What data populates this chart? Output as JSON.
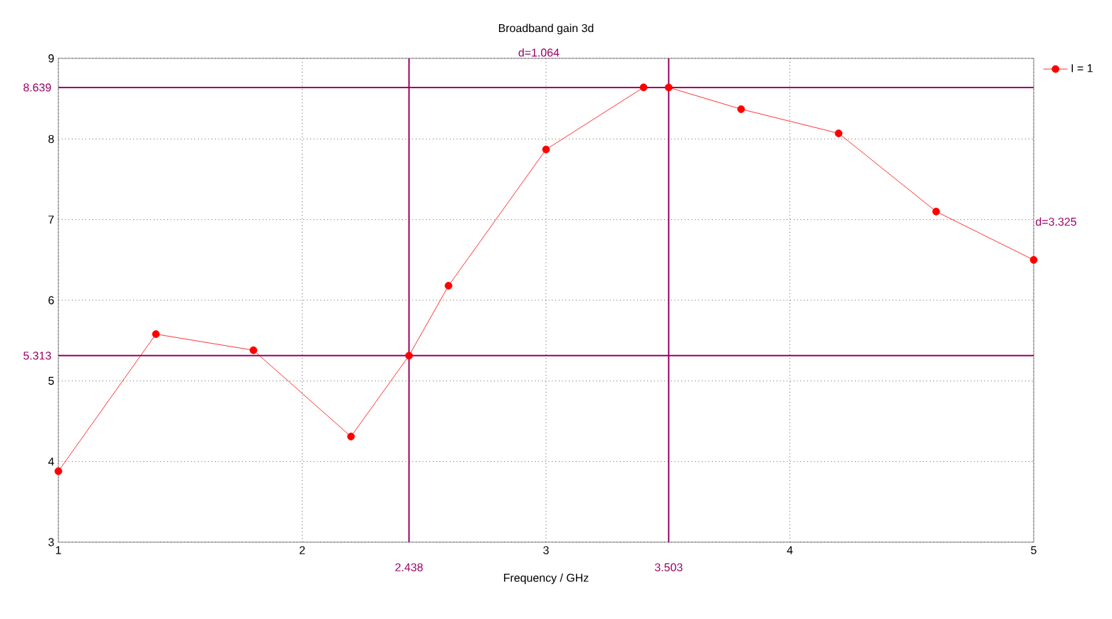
{
  "chart_data": {
    "type": "line",
    "title": "Broadband gain 3d",
    "xlabel": "Frequency / GHz",
    "x": [
      1,
      1.4,
      1.8,
      2.2,
      2.438,
      2.6,
      3.0,
      3.4,
      3.503,
      3.8,
      4.2,
      4.6,
      5
    ],
    "series": [
      {
        "name": "I = 1",
        "color": "#ff0000",
        "values": [
          3.88,
          5.58,
          5.38,
          4.31,
          5.313,
          6.18,
          7.87,
          8.64,
          8.639,
          8.37,
          8.07,
          7.1,
          6.5
        ]
      }
    ],
    "xlim": [
      1,
      5
    ],
    "ylim": [
      3,
      9
    ],
    "xticks": [
      1,
      2,
      3,
      4,
      5
    ],
    "yticks": [
      3,
      4,
      5,
      6,
      7,
      8,
      9
    ],
    "ref_lines": [
      {
        "axis": "x",
        "value": 2.438,
        "label": "2.438",
        "color": "#990066"
      },
      {
        "axis": "x",
        "value": 3.503,
        "label": "3.503",
        "color": "#990066"
      },
      {
        "axis": "y",
        "value": 5.313,
        "label": "5.313",
        "color": "#990066"
      },
      {
        "axis": "y",
        "value": 8.639,
        "label": "8.639",
        "color": "#990066"
      }
    ],
    "annotations": [
      "d=1.064",
      "d=3.325"
    ],
    "grid": true,
    "legend": "top right",
    "marker": "circle",
    "line_style": "solid"
  }
}
